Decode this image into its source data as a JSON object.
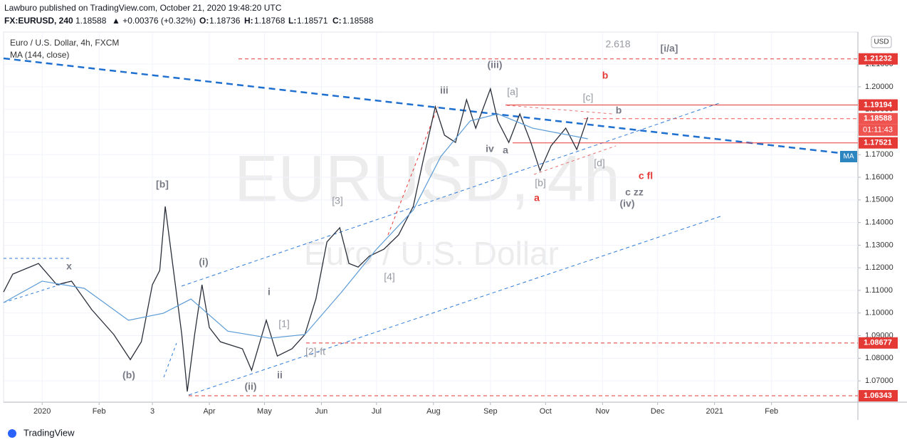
{
  "header": {
    "publisher": "Lawburo published on TradingView.com, October 21, 2020 19:48:20 UTC",
    "symbol": "FX:EURUSD, 240",
    "last": "1.18588",
    "change": "▲ +0.00376 (+0.32%)",
    "o_label": "O:",
    "o": "1.18736",
    "h_label": "H:",
    "h": "1.18768",
    "l_label": "L:",
    "l": "1.18571",
    "c_label": "C:",
    "c": "1.18588"
  },
  "legend": {
    "instrument": "Euro / U.S. Dollar, 4h, FXCM",
    "indicator": "MA (144, close)"
  },
  "watermark": {
    "symbol": "EURUSD, 4h",
    "name": "Euro / U.S. Dollar"
  },
  "currency": "USD",
  "ma_badge": "MA",
  "countdown": "01:11:43",
  "footer": "TradingView",
  "chart_data": {
    "type": "line",
    "xlim": [
      -21,
      444
    ],
    "xticks": [
      {
        "value": 0,
        "label": "2020"
      },
      {
        "value": 31,
        "label": "Feb"
      },
      {
        "value": 60,
        "label": "3"
      },
      {
        "value": 91,
        "label": "Apr"
      },
      {
        "value": 121,
        "label": "May"
      },
      {
        "value": 152,
        "label": "Jun"
      },
      {
        "value": 182,
        "label": "Jul"
      },
      {
        "value": 213,
        "label": "Aug"
      },
      {
        "value": 244,
        "label": "Sep"
      },
      {
        "value": 274,
        "label": "Oct"
      },
      {
        "value": 305,
        "label": "Nov"
      },
      {
        "value": 335,
        "label": "Dec"
      },
      {
        "value": 366,
        "label": "2021"
      },
      {
        "value": 397,
        "label": "Feb"
      }
    ],
    "ylim": [
      1.0606,
      1.2242
    ],
    "yticks": [
      {
        "value": 1.07,
        "label": "1.07000"
      },
      {
        "value": 1.08,
        "label": "1.08000"
      },
      {
        "value": 1.09,
        "label": "1.09000"
      },
      {
        "value": 1.1,
        "label": "1.10000"
      },
      {
        "value": 1.11,
        "label": "1.11000"
      },
      {
        "value": 1.12,
        "label": "1.12000"
      },
      {
        "value": 1.13,
        "label": "1.13000"
      },
      {
        "value": 1.14,
        "label": "1.14000"
      },
      {
        "value": 1.15,
        "label": "1.15000"
      },
      {
        "value": 1.16,
        "label": "1.16000"
      },
      {
        "value": 1.17,
        "label": "1.17000"
      },
      {
        "value": 1.18,
        "label": "1.18000"
      },
      {
        "value": 1.19,
        "label": "1.19000"
      },
      {
        "value": 1.2,
        "label": "1.20000"
      },
      {
        "value": 1.21,
        "label": "1.21000"
      }
    ],
    "series": [
      {
        "color": "#2a2e39",
        "x": [
          -21,
          -16,
          -2,
          8,
          16,
          27,
          39,
          48,
          54,
          60,
          64,
          67,
          70,
          76,
          79,
          83,
          87,
          91,
          97,
          109,
          114,
          122,
          128,
          136,
          143,
          149,
          155,
          162,
          167,
          172,
          178,
          186,
          194,
          202,
          207,
          214,
          219,
          225,
          231,
          236,
          244,
          248,
          254,
          260,
          266,
          271,
          277,
          285,
          291,
          297
        ],
        "values": [
          1.1093,
          1.1172,
          1.1219,
          1.1125,
          1.1141,
          1.1015,
          1.0905,
          1.0794,
          1.0873,
          1.1125,
          1.1188,
          1.1471,
          1.1282,
          1.0905,
          1.0653,
          1.0905,
          1.1125,
          1.0936,
          1.0873,
          1.0842,
          1.0747,
          1.0968,
          1.081,
          1.0842,
          1.0905,
          1.1062,
          1.1314,
          1.1377,
          1.1219,
          1.1203,
          1.1251,
          1.1282,
          1.1345,
          1.1471,
          1.166,
          1.1912,
          1.1786,
          1.1754,
          1.1943,
          1.1817,
          1.1991,
          1.1849,
          1.1754,
          1.188,
          1.1754,
          1.1629,
          1.1739,
          1.1817,
          1.1723,
          1.1865
        ]
      },
      {
        "color": "#5b9bd5",
        "x": [
          -21,
          0,
          23,
          47,
          66,
          81,
          101,
          124,
          143,
          163,
          182,
          202,
          217,
          233,
          248,
          267,
          287,
          297
        ],
        "values": [
          1.1046,
          1.1141,
          1.1109,
          1.0968,
          1.0999,
          1.1062,
          1.092,
          1.0889,
          1.0905,
          1.1093,
          1.1282,
          1.1455,
          1.1692,
          1.1849,
          1.188,
          1.1817,
          1.1786,
          1.177
        ]
      }
    ],
    "levels": [
      {
        "value": 1.21232,
        "color": "#e53935",
        "dashed": true
      },
      {
        "value": 1.19194,
        "color": "#e53935",
        "dashed": false
      },
      {
        "value": 1.18588,
        "color": "#ef5350",
        "dashed": true
      },
      {
        "value": 1.17521,
        "color": "#e53935",
        "dashed": false
      },
      {
        "value": 1.08677,
        "color": "#e53935",
        "dashed": true
      },
      {
        "value": 1.06343,
        "color": "#e53935",
        "dashed": true
      }
    ],
    "annotations": [
      {
        "text": "2.618",
        "color": "#9598a1"
      },
      {
        "text": "[i/a]",
        "color": "#787b86"
      },
      {
        "text": "b",
        "color": "#e53935"
      },
      {
        "text": "(iii)",
        "color": "#787b86"
      },
      {
        "text": "iii",
        "color": "#787b86"
      },
      {
        "text": "[a]",
        "color": "#9598a1"
      },
      {
        "text": "[c]",
        "color": "#9598a1"
      },
      {
        "text": "b",
        "color": "#787b86"
      },
      {
        "text": "iv",
        "color": "#787b86"
      },
      {
        "text": "a",
        "color": "#787b86"
      },
      {
        "text": "[d]",
        "color": "#9598a1"
      },
      {
        "text": "c fl",
        "color": "#e53935"
      },
      {
        "text": "[b]",
        "color": "#9598a1"
      },
      {
        "text": "a",
        "color": "#e53935"
      },
      {
        "text": "c zz",
        "color": "#787b86"
      },
      {
        "text": "(iv)",
        "color": "#787b86"
      },
      {
        "text": "[3]",
        "color": "#9598a1"
      },
      {
        "text": "[b]",
        "color": "#787b86"
      },
      {
        "text": "[4]",
        "color": "#9598a1"
      },
      {
        "text": "x",
        "color": "#787b86"
      },
      {
        "text": "(i)",
        "color": "#787b86"
      },
      {
        "text": "i",
        "color": "#787b86"
      },
      {
        "text": "[1]",
        "color": "#9598a1"
      },
      {
        "text": "[2]-ft",
        "color": "#9598a1"
      },
      {
        "text": "(b)",
        "color": "#787b86"
      },
      {
        "text": "ii",
        "color": "#787b86"
      },
      {
        "text": "(ii)",
        "color": "#787b86"
      }
    ]
  }
}
